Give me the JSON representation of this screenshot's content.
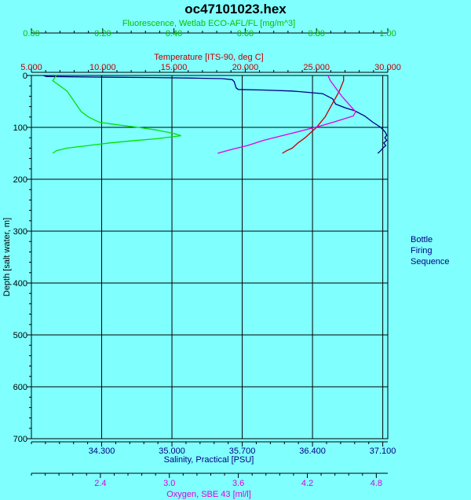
{
  "chart_data": {
    "type": "line",
    "title": "oc47101023.hex",
    "side_label": [
      "Bottle",
      "Firing",
      "Sequence"
    ],
    "y_axis": {
      "label": "Depth [salt water, m]",
      "range": [
        0,
        700
      ],
      "ticks": [
        0,
        100,
        200,
        300,
        400,
        500,
        600,
        700
      ],
      "tick_labels": [
        "0",
        "100",
        "200",
        "300",
        "400",
        "500",
        "600",
        "700"
      ],
      "inverted": true
    },
    "grid": true,
    "axes": {
      "fluorescence": {
        "label": "Fluorescence, Wetlab ECO-AFL/FL [mg/m^3]",
        "position": "top-outer",
        "color": "#00c000",
        "range": [
          0,
          1
        ],
        "ticks": [
          0,
          0.2,
          0.4,
          0.6,
          0.8,
          1.0
        ],
        "tick_labels": [
          "0.00",
          "0.20",
          "0.40",
          "0.60",
          "0.80",
          "1.00"
        ]
      },
      "temperature": {
        "label": "Temperature [ITS-90, deg C]",
        "position": "top-inner",
        "color": "#c00000",
        "range": [
          5,
          30
        ],
        "ticks": [
          5,
          10,
          15,
          20,
          25,
          30
        ],
        "tick_labels": [
          "5.000",
          "10.000",
          "15.000",
          "20.000",
          "25.000",
          "30.000"
        ]
      },
      "salinity": {
        "label": "Salinity, Practical [PSU]",
        "position": "bottom-inner",
        "color": "#000080",
        "range": [
          33.6,
          37.15
        ],
        "ticks": [
          34.3,
          35.0,
          35.7,
          36.4,
          37.1
        ],
        "tick_labels": [
          "34.300",
          "35.000",
          "35.700",
          "36.400",
          "37.100"
        ]
      },
      "oxygen": {
        "label": "Oxygen, SBE 43 [ml/l]",
        "position": "bottom-outer",
        "color": "#e000e0",
        "range": [
          1.8,
          4.9
        ],
        "ticks": [
          2.4,
          3.0,
          3.6,
          4.2,
          4.8
        ],
        "tick_labels": [
          "2.4",
          "3.0",
          "3.6",
          "4.2",
          "4.8"
        ]
      }
    },
    "series": [
      {
        "axis": "salinity",
        "color": "#000080",
        "points": [
          [
            33.72,
            0
          ],
          [
            33.75,
            2
          ],
          [
            34.2,
            3
          ],
          [
            34.8,
            4
          ],
          [
            35.2,
            5
          ],
          [
            35.5,
            6
          ],
          [
            35.6,
            8
          ],
          [
            35.62,
            12
          ],
          [
            35.63,
            18
          ],
          [
            35.64,
            24
          ],
          [
            35.66,
            27
          ],
          [
            35.9,
            28
          ],
          [
            36.2,
            30
          ],
          [
            36.5,
            35
          ],
          [
            36.6,
            45
          ],
          [
            36.63,
            55
          ],
          [
            36.72,
            62
          ],
          [
            36.82,
            68
          ],
          [
            36.92,
            78
          ],
          [
            37.0,
            90
          ],
          [
            37.08,
            100
          ],
          [
            37.12,
            108
          ],
          [
            37.14,
            115
          ],
          [
            37.12,
            120
          ],
          [
            37.14,
            125
          ],
          [
            37.11,
            130
          ],
          [
            37.13,
            135
          ],
          [
            37.1,
            140
          ],
          [
            37.08,
            145
          ],
          [
            37.05,
            150
          ]
        ]
      },
      {
        "axis": "temperature",
        "color": "#c00000",
        "points": [
          [
            26.9,
            0
          ],
          [
            26.9,
            10
          ],
          [
            26.6,
            30
          ],
          [
            26.2,
            50
          ],
          [
            25.8,
            70
          ],
          [
            25.6,
            80
          ],
          [
            25.3,
            90
          ],
          [
            25.0,
            100
          ],
          [
            24.6,
            110
          ],
          [
            24.2,
            120
          ],
          [
            23.7,
            130
          ],
          [
            23.3,
            140
          ],
          [
            22.9,
            145
          ],
          [
            22.6,
            150
          ]
        ]
      },
      {
        "axis": "oxygen",
        "color": "#e000e0",
        "points": [
          [
            4.38,
            0
          ],
          [
            4.4,
            10
          ],
          [
            4.45,
            25
          ],
          [
            4.5,
            40
          ],
          [
            4.56,
            55
          ],
          [
            4.62,
            70
          ],
          [
            4.6,
            78
          ],
          [
            4.5,
            85
          ],
          [
            4.35,
            95
          ],
          [
            4.18,
            105
          ],
          [
            4.0,
            115
          ],
          [
            3.82,
            125
          ],
          [
            3.68,
            135
          ],
          [
            3.55,
            142
          ],
          [
            3.45,
            148
          ],
          [
            3.42,
            150
          ]
        ]
      },
      {
        "axis": "fluorescence",
        "color": "#00e000",
        "points": [
          [
            0.07,
            0
          ],
          [
            0.06,
            10
          ],
          [
            0.08,
            20
          ],
          [
            0.1,
            30
          ],
          [
            0.11,
            40
          ],
          [
            0.12,
            50
          ],
          [
            0.13,
            60
          ],
          [
            0.14,
            70
          ],
          [
            0.16,
            80
          ],
          [
            0.19,
            90
          ],
          [
            0.24,
            95
          ],
          [
            0.3,
            100
          ],
          [
            0.35,
            105
          ],
          [
            0.4,
            112
          ],
          [
            0.42,
            116
          ],
          [
            0.35,
            122
          ],
          [
            0.28,
            126
          ],
          [
            0.22,
            130
          ],
          [
            0.16,
            135
          ],
          [
            0.1,
            140
          ],
          [
            0.07,
            145
          ],
          [
            0.06,
            150
          ]
        ]
      }
    ]
  }
}
